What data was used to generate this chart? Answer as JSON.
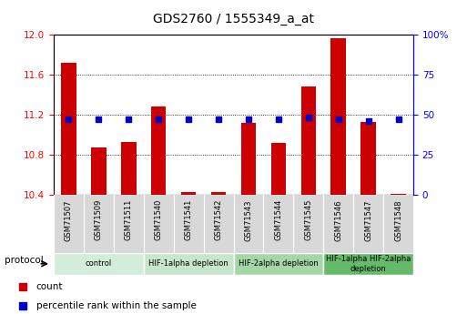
{
  "title": "GDS2760 / 1555349_a_at",
  "samples": [
    "GSM71507",
    "GSM71509",
    "GSM71511",
    "GSM71540",
    "GSM71541",
    "GSM71542",
    "GSM71543",
    "GSM71544",
    "GSM71545",
    "GSM71546",
    "GSM71547",
    "GSM71548"
  ],
  "bar_values": [
    11.72,
    10.87,
    10.93,
    11.28,
    10.43,
    10.43,
    11.12,
    10.92,
    11.48,
    11.96,
    11.13,
    10.41
  ],
  "percentile_values": [
    47,
    47,
    47,
    47,
    47,
    47,
    47,
    47,
    48,
    47,
    46,
    47
  ],
  "ylim_left": [
    10.4,
    12.0
  ],
  "ylim_right": [
    0,
    100
  ],
  "yticks_left": [
    10.4,
    10.8,
    11.2,
    11.6,
    12.0
  ],
  "yticks_right": [
    0,
    25,
    50,
    75,
    100
  ],
  "ytick_labels_right": [
    "0",
    "25",
    "50",
    "75",
    "100%"
  ],
  "bar_color": "#cc0000",
  "percentile_color": "#0000cc",
  "protocol_groups": [
    {
      "label": "control",
      "start": 0,
      "end": 3,
      "color": "#d4edda"
    },
    {
      "label": "HIF-1alpha depletion",
      "start": 3,
      "end": 6,
      "color": "#c8e6c9"
    },
    {
      "label": "HIF-2alpha depletion",
      "start": 6,
      "end": 9,
      "color": "#a5d6a7"
    },
    {
      "label": "HIF-1alpha HIF-2alpha\ndepletion",
      "start": 9,
      "end": 12,
      "color": "#66bb6a"
    }
  ],
  "legend_items": [
    {
      "label": "count",
      "color": "#cc0000"
    },
    {
      "label": "percentile rank within the sample",
      "color": "#0000cc"
    }
  ],
  "figsize": [
    5.13,
    3.45
  ],
  "dpi": 100
}
